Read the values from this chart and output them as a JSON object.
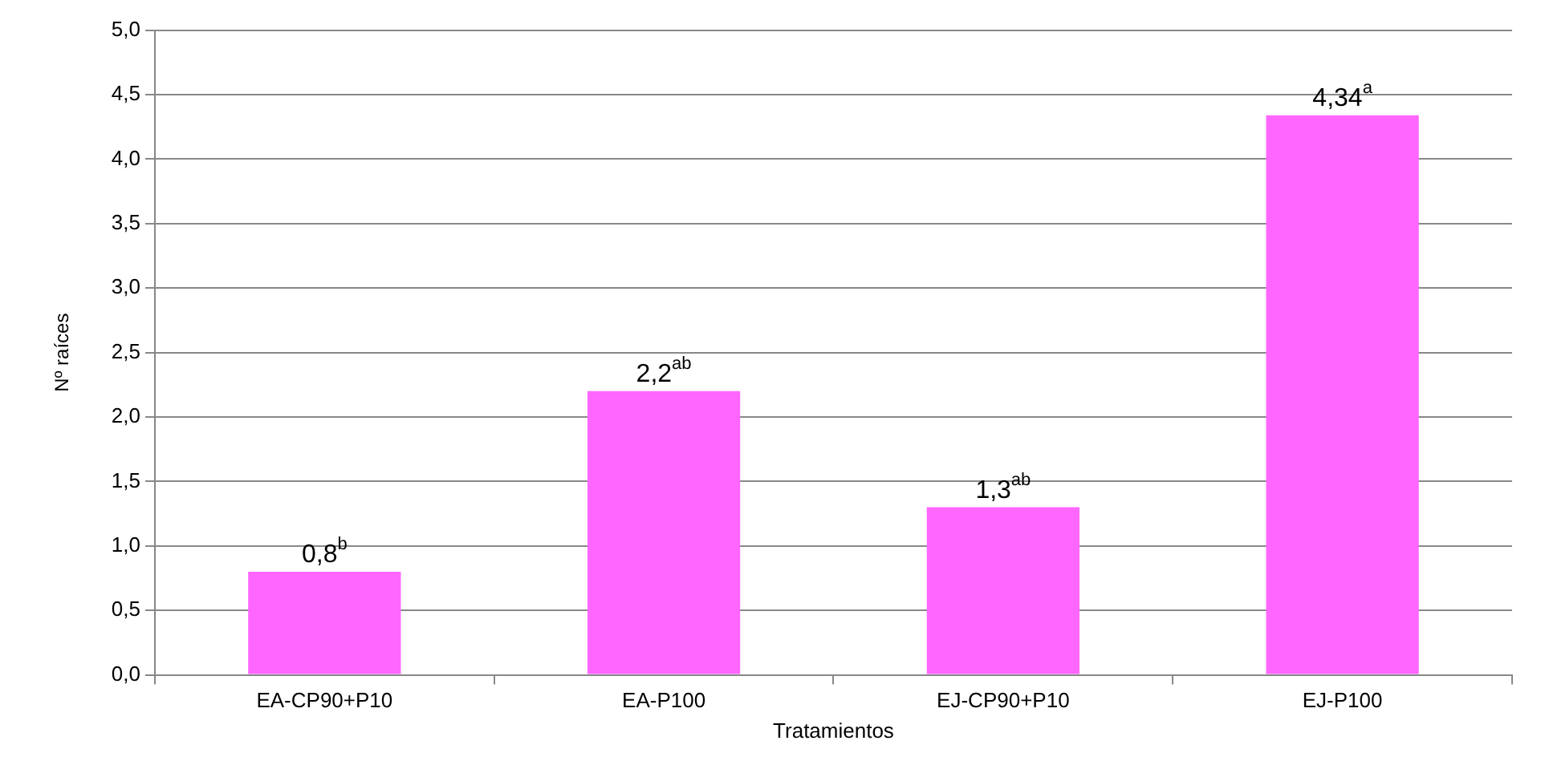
{
  "chart_data": {
    "type": "bar",
    "xlabel": "Tratamientos",
    "ylabel": "Nº raíces",
    "categories": [
      "EA-CP90+P10",
      "EA-P100",
      "EJ-CP90+P10",
      "EJ-P100"
    ],
    "values": [
      0.8,
      2.2,
      1.3,
      4.34
    ],
    "color": "#ff66ff",
    "value_labels": [
      "0,8$^{b}$",
      "2,2$^{ab}$",
      "1,3$^{ab}$",
      "4,34$^{a}$"
    ],
    "ylim": [
      0,
      5
    ],
    "yticks": [
      {
        "value": 0,
        "label": "0,0"
      },
      {
        "value": 0.5,
        "label": "0,5"
      },
      {
        "value": 1,
        "label": "1,0"
      },
      {
        "value": 1.5,
        "label": "1,5"
      },
      {
        "value": 2,
        "label": "2,0"
      },
      {
        "value": 2.5,
        "label": "2,5"
      },
      {
        "value": 3,
        "label": "3,0"
      },
      {
        "value": 3.5,
        "label": "3,5"
      },
      {
        "value": 4,
        "label": "4,0"
      },
      {
        "value": 4.5,
        "label": "4,5"
      },
      {
        "value": 5,
        "label": "5,0"
      }
    ],
    "grid": "y",
    "legend": false
  }
}
